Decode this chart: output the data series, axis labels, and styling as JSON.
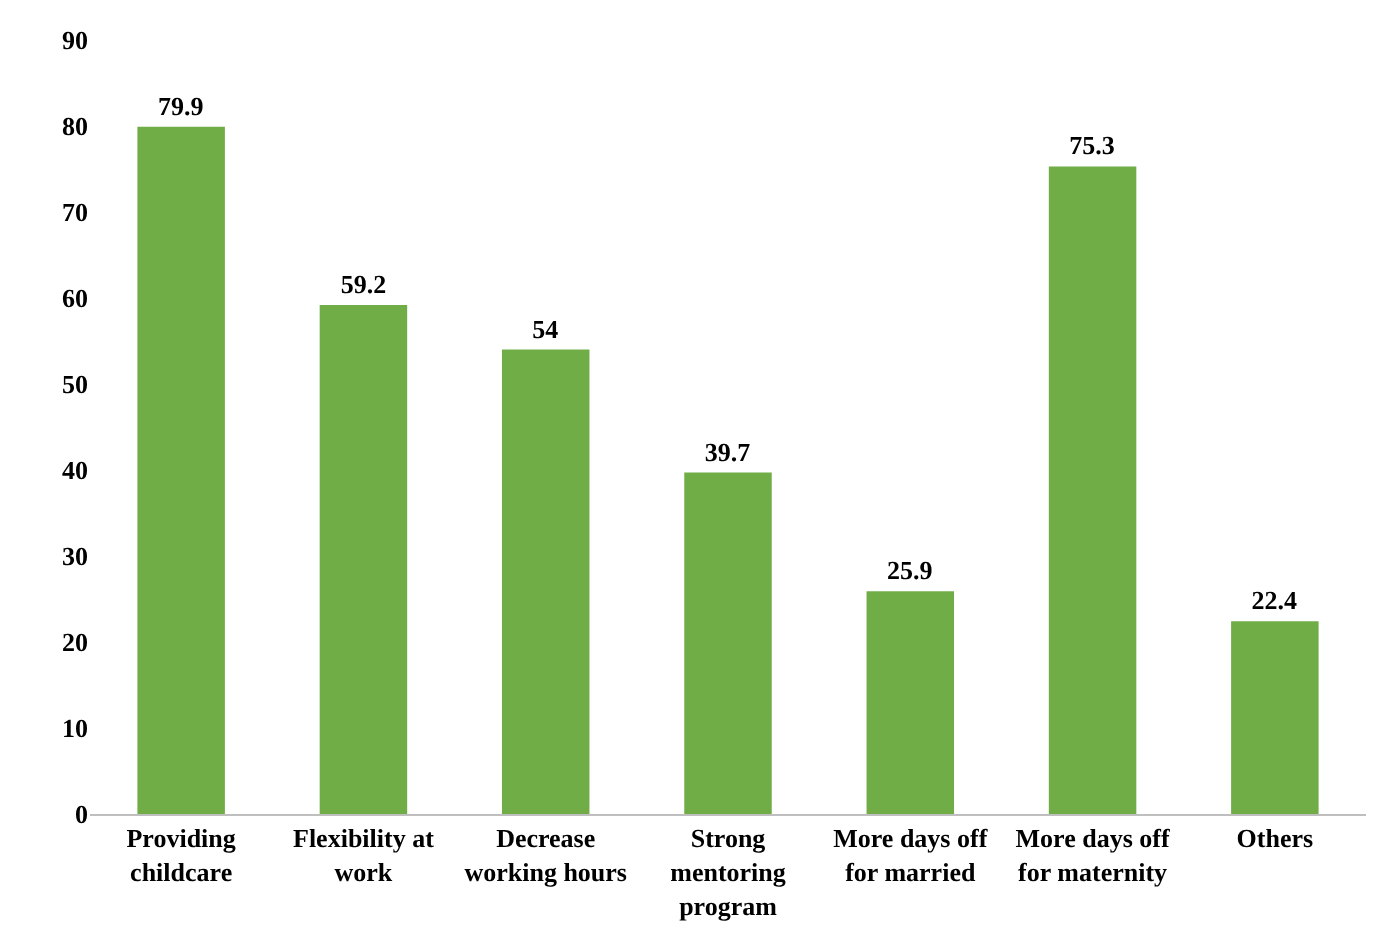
{
  "chart_data": {
    "type": "bar",
    "categories": [
      "Providing childcare",
      "Flexibility at work",
      "Decrease working hours",
      "Strong mentoring program",
      "More days off for married",
      "More days off for maternity",
      "Others"
    ],
    "values": [
      79.9,
      59.2,
      54,
      39.7,
      25.9,
      75.3,
      22.4
    ],
    "color": "#70ad47",
    "ylim": [
      0,
      90
    ],
    "yticks": [
      0,
      10,
      20,
      30,
      40,
      50,
      60,
      70,
      80,
      90
    ],
    "grid": false,
    "legend": false,
    "data_labels": true
  }
}
